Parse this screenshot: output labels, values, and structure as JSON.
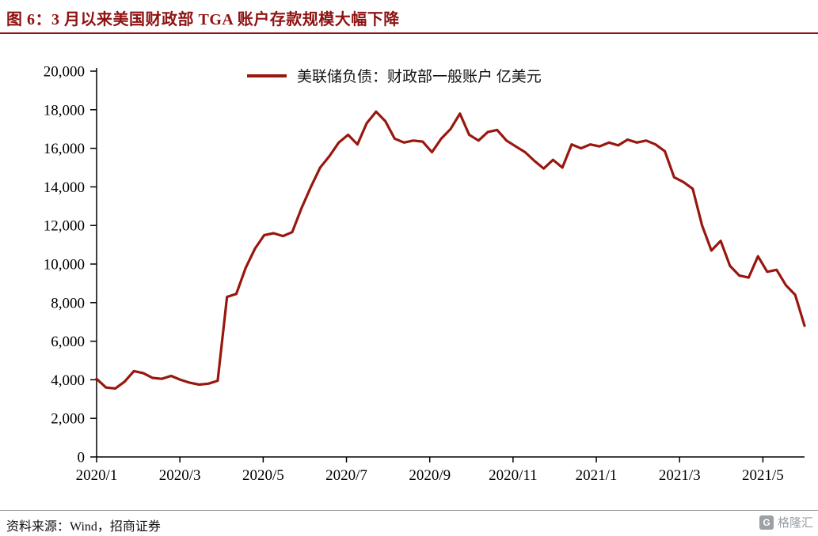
{
  "title": "图 6：3 月以来美国财政部 TGA 账户存款规模大幅下降",
  "accent_color": "#8E1212",
  "footer": {
    "source": "资料来源：Wind，招商证券"
  },
  "watermark": {
    "text": "格隆汇",
    "icon_glyph": "G"
  },
  "chart_data": {
    "type": "line",
    "title": "图 6：3 月以来美国财政部 TGA 账户存款规模大幅下降",
    "legend_label": "美联储负债：财政部一般账户 亿美元",
    "series_name": "美联储负债：财政部一般账户",
    "unit": "亿美元",
    "grid": false,
    "legend_position": "top-center",
    "line_color": "#98170F",
    "ylim": [
      0,
      20000
    ],
    "y_ticks": [
      "0",
      "2,000",
      "4,000",
      "6,000",
      "8,000",
      "10,000",
      "12,000",
      "14,000",
      "16,000",
      "18,000",
      "20,000"
    ],
    "x_tick_labels": [
      "2020/1",
      "2020/3",
      "2020/5",
      "2020/7",
      "2020/9",
      "2020/11",
      "2021/1",
      "2021/3",
      "2021/5"
    ],
    "x_tick_months": [
      0,
      2,
      4,
      6,
      8,
      10,
      12,
      14,
      16
    ],
    "total_months": 17,
    "x_interval": "weekly, 2020/1 to 2021/6",
    "values": [
      4050,
      3600,
      3550,
      3900,
      4450,
      4350,
      4100,
      4050,
      4200,
      4000,
      3850,
      3750,
      3800,
      3950,
      8300,
      8450,
      9800,
      10800,
      11500,
      11600,
      11450,
      11650,
      12900,
      14000,
      15000,
      15600,
      16300,
      16700,
      16200,
      17300,
      17900,
      17400,
      16500,
      16300,
      16400,
      16350,
      15800,
      16500,
      17000,
      17800,
      16700,
      16400,
      16850,
      16950,
      16400,
      16100,
      15800,
      15350,
      14950,
      15400,
      15000,
      16200,
      16000,
      16200,
      16100,
      16300,
      16150,
      16450,
      16300,
      16400,
      16200,
      15850,
      14500,
      14250,
      13900,
      12000,
      10700,
      11200,
      9900,
      9400,
      9300,
      10400,
      9600,
      9700,
      8900,
      8400,
      6800
    ]
  }
}
